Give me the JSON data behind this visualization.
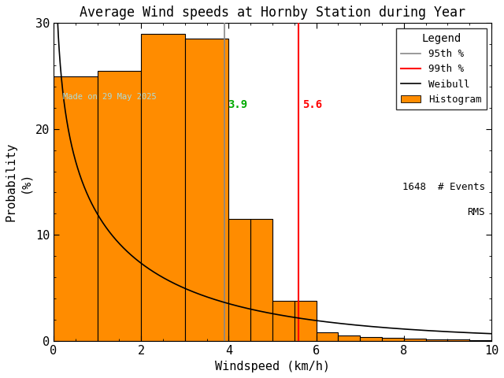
{
  "title": "Average Wind speeds at Hornby Station during Year",
  "xlabel": "Windspeed (km/h)",
  "ylabel_top": "Probability",
  "ylabel_bot": "(%)",
  "xlim": [
    0,
    10
  ],
  "ylim": [
    0,
    30
  ],
  "bar_edges": [
    0,
    1.0,
    2.0,
    3.0,
    4.0,
    4.5,
    5.0,
    5.5,
    6.0,
    6.5,
    7.0,
    7.5,
    8.0,
    8.5,
    9.0,
    9.5,
    10.0
  ],
  "bar_heights": [
    25.0,
    25.5,
    29.0,
    28.5,
    11.5,
    11.5,
    3.8,
    3.8,
    0.8,
    0.5,
    0.35,
    0.25,
    0.2,
    0.15,
    0.1,
    0.05
  ],
  "bar_color": "#FF8C00",
  "bar_edgecolor": "#000000",
  "weibull_shape": 0.78,
  "weibull_scale": 2.6,
  "weibull_scale_factor": 52.0,
  "percentile_95": 3.9,
  "percentile_99": 5.6,
  "p95_color": "#888888",
  "p95_label_color": "#00AA00",
  "p99_color": "#ff0000",
  "n_events": 1648,
  "date_text": "Made on 29 May 2025",
  "background_color": "#ffffff",
  "font_family": "monospace",
  "title_fontsize": 12,
  "axis_fontsize": 11,
  "legend_fontsize": 9
}
